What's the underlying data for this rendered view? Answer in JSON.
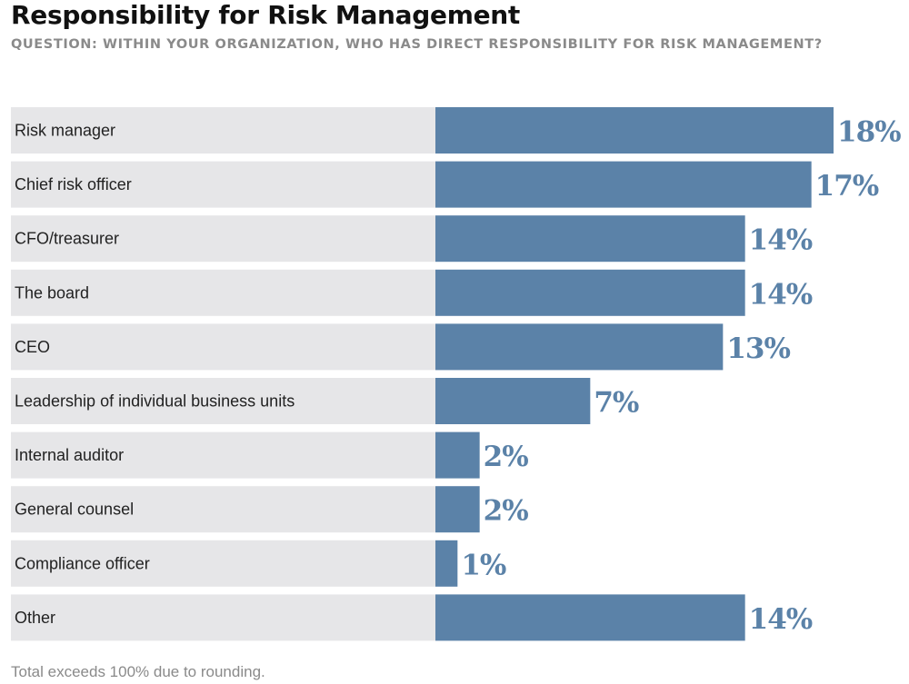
{
  "chart_data": {
    "type": "bar",
    "orientation": "horizontal",
    "title": "Responsibility for Risk Management",
    "subtitle": "QUESTION: WITHIN YOUR ORGANIZATION, WHO HAS DIRECT RESPONSIBILITY FOR RISK MANAGEMENT?",
    "categories": [
      "Risk manager",
      "Chief risk officer",
      "CFO/treasurer",
      "The board",
      "CEO",
      "Leadership of individual business units",
      "Internal auditor",
      "General counsel",
      "Compliance officer",
      "Other"
    ],
    "values": [
      18,
      17,
      14,
      14,
      13,
      7,
      2,
      2,
      1,
      14
    ],
    "data_labels": [
      "18%",
      "17%",
      "14%",
      "14%",
      "13%",
      "7%",
      "2%",
      "2%",
      "1%",
      "14%"
    ],
    "value_unit": "%",
    "xlim": [
      0,
      18
    ],
    "grid": false,
    "legend": "none",
    "footnote": "Total exceeds 100% due to rounding."
  },
  "colors": {
    "bar": "#5b82a8",
    "row_background": "#e6e6e8",
    "value_label": "#5b82a8"
  }
}
